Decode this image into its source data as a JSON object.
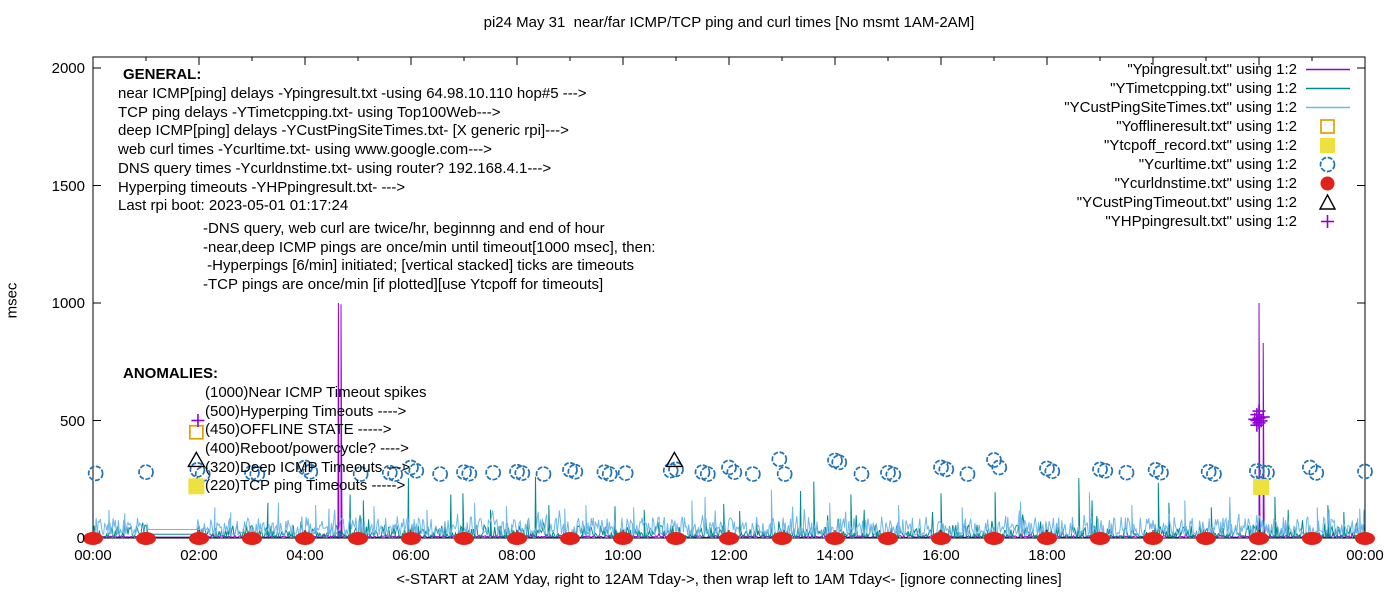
{
  "title": "pi24 May 31  near/far ICMP/TCP ping and curl times [No msmt 1AM-2AM]",
  "xlabel": "<-START at 2AM Yday, right to 12AM Tday->, then wrap left to 1AM Tday<- [ignore connecting lines]",
  "ylabel": "msec",
  "colors": {
    "near_icmp_line": "#9400D3",
    "tcp_ping_line": "#008B8B",
    "deep_icmp_line": "#6FB7E9",
    "offline_square": "#E0A000",
    "tcpoff_square": "#EDE13F",
    "curl_circle": "#2272B4",
    "dns_dot": "#E3211B",
    "deep_timeout_triangle": "#000000",
    "hyperping_plus": "#9400D3",
    "axis": "#000000",
    "text": "#000000",
    "background": "#FFFFFF"
  },
  "legend": {
    "entries": [
      {
        "label": "\"Ypingresult.txt\" using 1:2",
        "marker": "line",
        "color": "#9400D3"
      },
      {
        "label": "\"YTimetcpping.txt\" using 1:2",
        "marker": "line",
        "color": "#008B8B"
      },
      {
        "label": "\"YCustPingSiteTimes.txt\" using 1:2",
        "marker": "line",
        "color": "#6FB7E9"
      },
      {
        "label": "\"Yofflineresult.txt\" using 1:2",
        "marker": "square-open",
        "color": "#E0A000"
      },
      {
        "label": "\"Ytcpoff_record.txt\" using 1:2",
        "marker": "square-filled",
        "color": "#EDE13F"
      },
      {
        "label": "\"Ycurltime.txt\" using 1:2",
        "marker": "circle-open",
        "color": "#2272B4"
      },
      {
        "label": "\"Ycurldnstime.txt\" using 1:2",
        "marker": "circle-filled",
        "color": "#E3211B"
      },
      {
        "label": "\"YCustPingTimeout.txt\" using 1:2",
        "marker": "triangle-open",
        "color": "#000000"
      },
      {
        "label": "\"YHPpingresult.txt\" using 1:2",
        "marker": "plus",
        "color": "#9400D3"
      }
    ]
  },
  "annotations": {
    "general": {
      "header": "GENERAL:",
      "lines": [
        "near ICMP[ping] delays -Ypingresult.txt -using 64.98.10.110 hop#5 --->",
        "TCP ping delays -YTimetcpping.txt- using Top100Web--->",
        "deep ICMP[ping] delays -YCustPingSiteTimes.txt- [X generic rpi]--->",
        "web curl times -Ycurltime.txt- using www.google.com--->",
        "DNS query times -Ycurldnstime.txt- using router? 192.168.4.1--->",
        "Hyperping timeouts -YHPpingresult.txt- --->",
        "Last rpi boot: 2023-05-01 01:17:24"
      ],
      "notes": [
        "-DNS query, web curl are twice/hr, beginnng and end of hour",
        "-near,deep ICMP pings are once/min until timeout[1000 msec], then:",
        " -Hyperpings [6/min] initiated; [vertical stacked] ticks are timeouts",
        "-TCP pings are once/min [if plotted][use Ytcpoff for timeouts]"
      ]
    },
    "anomalies": {
      "header": "ANOMALIES:",
      "lines": [
        "(1000)Near ICMP Timeout spikes",
        "(500)Hyperping Timeouts ---->",
        "(450)OFFLINE STATE ----->",
        "(400)Reboot/powercycle? ---->",
        "(320)Deep ICMP Timeouts --->",
        "(220)TCP ping Timeouts ----->"
      ]
    }
  },
  "chart_data": {
    "type": "line",
    "x_axis": {
      "range_hours": [
        0,
        24
      ],
      "tick_labels": [
        "00:00",
        "02:00",
        "04:00",
        "06:00",
        "08:00",
        "10:00",
        "12:00",
        "14:00",
        "16:00",
        "18:00",
        "20:00",
        "22:00",
        "00:00"
      ],
      "major_tick_every_hours": 2,
      "minor_tick_every_hours": 1
    },
    "y_axis": {
      "label": "msec",
      "ticks": [
        0,
        500,
        1000,
        1500,
        2000
      ],
      "range": [
        0,
        2046
      ]
    },
    "measurement_gap_hours": [
      1.03,
      1.97
    ],
    "series": [
      {
        "name": "Ypingresult (near ICMP ping delay)",
        "color": "#9400D3",
        "noise": {
          "base": 2,
          "amp": 8,
          "pow": 1.0,
          "spike_prob": 0.02,
          "spike_amp": 25,
          "gap_value": 4,
          "seed": 11
        },
        "spikes": [
          [
            4.63,
            1000
          ],
          [
            4.68,
            995
          ],
          [
            22.0,
            1000
          ],
          [
            22.08,
            830
          ]
        ]
      },
      {
        "name": "YTimetcpping (TCP ping delay)",
        "color": "#008B8B",
        "noise": {
          "base": 3,
          "amp": 52,
          "pow": 2.2,
          "spike_prob": 0.05,
          "spike_amp": 70,
          "gap_value": 16,
          "seed": 7
        },
        "spikes": [
          [
            3.3,
            150
          ],
          [
            4.85,
            185
          ],
          [
            5.1,
            160
          ],
          [
            5.95,
            255
          ],
          [
            6.75,
            185
          ],
          [
            6.98,
            190
          ],
          [
            7.5,
            120
          ],
          [
            8.35,
            260
          ],
          [
            8.6,
            140
          ],
          [
            9.85,
            135
          ],
          [
            10.4,
            120
          ],
          [
            11.9,
            145
          ],
          [
            12.2,
            115
          ],
          [
            13.35,
            200
          ],
          [
            13.6,
            240
          ],
          [
            14.3,
            185
          ],
          [
            14.55,
            120
          ],
          [
            16.0,
            190
          ],
          [
            17.02,
            195
          ],
          [
            18.6,
            255
          ],
          [
            18.85,
            160
          ],
          [
            20.1,
            235
          ],
          [
            20.3,
            150
          ],
          [
            21.1,
            130
          ],
          [
            22.3,
            175
          ],
          [
            22.55,
            120
          ],
          [
            23.3,
            140
          ],
          [
            23.6,
            110
          ]
        ]
      },
      {
        "name": "YCustPingSiteTimes (deep ICMP ping delay)",
        "color": "#6FB7E9",
        "noise": {
          "base": 13,
          "amp": 78,
          "pow": 2.0,
          "spike_prob": 0.1,
          "spike_amp": 55,
          "gap_value": 36,
          "seed": 23
        },
        "spikes": [
          [
            0.3,
            120
          ],
          [
            0.6,
            105
          ],
          [
            2.3,
            130
          ],
          [
            2.6,
            110
          ],
          [
            3.5,
            150
          ],
          [
            4.2,
            140
          ],
          [
            4.45,
            125
          ],
          [
            5.3,
            135
          ],
          [
            6.3,
            120
          ],
          [
            7.2,
            150
          ],
          [
            7.8,
            135
          ],
          [
            8.9,
            125
          ],
          [
            9.3,
            140
          ],
          [
            10.2,
            130
          ],
          [
            11.3,
            160
          ],
          [
            11.55,
            175
          ],
          [
            12.8,
            205
          ],
          [
            13.9,
            150
          ],
          [
            15.2,
            140
          ],
          [
            16.4,
            130
          ],
          [
            17.5,
            155
          ],
          [
            18.8,
            195
          ],
          [
            19.6,
            140
          ],
          [
            20.6,
            160
          ],
          [
            21.45,
            175
          ],
          [
            23.1,
            130
          ],
          [
            23.9,
            125
          ]
        ]
      }
    ],
    "markers": {
      "curl_circles": {
        "color": "#2272B4",
        "points": [
          [
            0.05,
            275
          ],
          [
            1.0,
            280
          ],
          [
            1.97,
            290
          ],
          [
            2.07,
            272
          ],
          [
            3.0,
            278
          ],
          [
            3.1,
            272
          ],
          [
            4.0,
            300
          ],
          [
            4.1,
            282
          ],
          [
            5.05,
            272
          ],
          [
            5.6,
            278
          ],
          [
            5.7,
            272
          ],
          [
            6.0,
            300
          ],
          [
            6.1,
            286
          ],
          [
            6.55,
            272
          ],
          [
            7.0,
            280
          ],
          [
            7.1,
            274
          ],
          [
            7.55,
            278
          ],
          [
            8.0,
            282
          ],
          [
            8.1,
            276
          ],
          [
            8.5,
            272
          ],
          [
            9.0,
            290
          ],
          [
            9.1,
            282
          ],
          [
            9.65,
            280
          ],
          [
            9.75,
            272
          ],
          [
            10.05,
            276
          ],
          [
            10.9,
            287
          ],
          [
            11.0,
            292
          ],
          [
            11.5,
            280
          ],
          [
            11.6,
            272
          ],
          [
            12.0,
            300
          ],
          [
            12.1,
            280
          ],
          [
            12.45,
            272
          ],
          [
            12.95,
            335
          ],
          [
            13.05,
            272
          ],
          [
            14.0,
            330
          ],
          [
            14.08,
            322
          ],
          [
            14.5,
            272
          ],
          [
            15.0,
            278
          ],
          [
            15.1,
            270
          ],
          [
            16.0,
            300
          ],
          [
            16.1,
            292
          ],
          [
            16.5,
            272
          ],
          [
            17.0,
            332
          ],
          [
            17.1,
            300
          ],
          [
            18.0,
            296
          ],
          [
            18.1,
            284
          ],
          [
            19.0,
            292
          ],
          [
            19.1,
            286
          ],
          [
            19.5,
            278
          ],
          [
            20.05,
            290
          ],
          [
            20.15,
            278
          ],
          [
            21.05,
            282
          ],
          [
            21.15,
            272
          ],
          [
            21.96,
            285
          ],
          [
            22.06,
            280
          ],
          [
            22.15,
            278
          ],
          [
            22.96,
            300
          ],
          [
            23.08,
            277
          ],
          [
            24.0,
            283
          ]
        ]
      },
      "dns_dots": {
        "color": "#E3211B",
        "value": 2,
        "hours": [
          0,
          1,
          2,
          3,
          4,
          5,
          6,
          7,
          8,
          9,
          10,
          11,
          12,
          13,
          14,
          15,
          16,
          17,
          18,
          19,
          20,
          21,
          22,
          23,
          24
        ]
      },
      "deep_timeout_triangles": {
        "color": "#000000",
        "points": [
          [
            1.95,
            330
          ],
          [
            10.97,
            330
          ]
        ]
      },
      "offline_open_squares": {
        "color": "#E0A000",
        "points": [
          [
            1.95,
            450
          ]
        ]
      },
      "tcpoff_filled_squares": {
        "color": "#EDE13F",
        "points": [
          [
            1.95,
            220
          ],
          [
            22.04,
            217
          ]
        ]
      },
      "hyperping_plus_marks": {
        "color": "#9400D3",
        "points": [
          [
            1.98,
            500
          ],
          [
            21.92,
            505
          ],
          [
            21.96,
            480
          ],
          [
            21.96,
            500
          ],
          [
            21.96,
            525
          ],
          [
            22.0,
            490
          ],
          [
            22.0,
            510
          ],
          [
            22.0,
            540
          ],
          [
            22.04,
            498
          ],
          [
            22.08,
            515
          ]
        ]
      }
    }
  }
}
